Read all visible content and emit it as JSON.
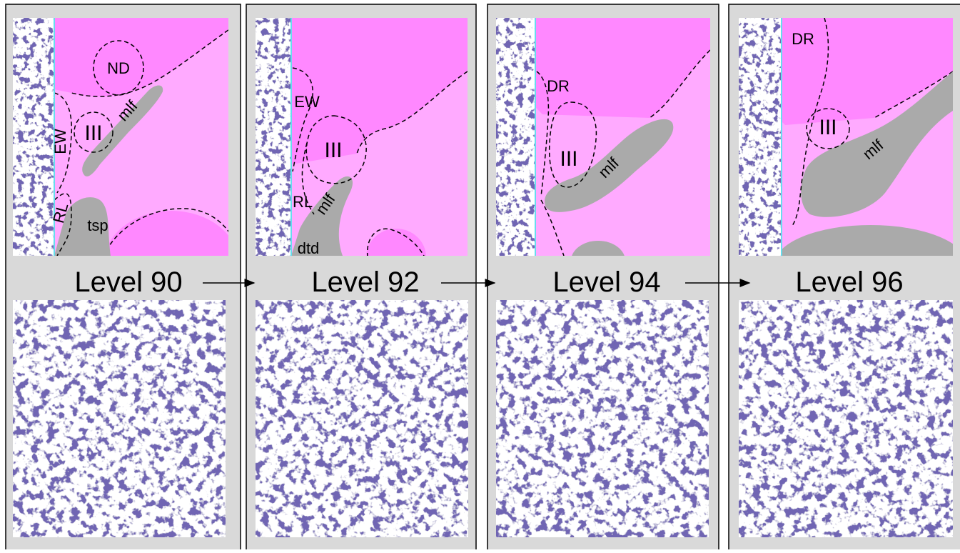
{
  "panels": [
    {
      "level": "Level 90",
      "labels": [
        "ND",
        "III",
        "mlf",
        "EW",
        "RL",
        "tsp"
      ]
    },
    {
      "level": "Level 92",
      "labels": [
        "EW",
        "III",
        "RL",
        "mlf",
        "dtd"
      ]
    },
    {
      "level": "Level 94",
      "labels": [
        "DR",
        "III",
        "mlf"
      ]
    },
    {
      "level": "Level 96",
      "labels": [
        "DR",
        "III",
        "mlf"
      ]
    }
  ]
}
